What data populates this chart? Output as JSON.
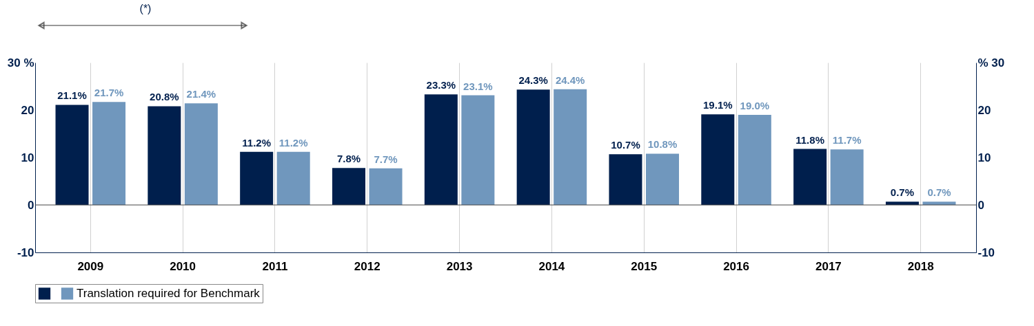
{
  "chart_data": {
    "type": "bar",
    "categories": [
      "2009",
      "2010",
      "2011",
      "2012",
      "2013",
      "2014",
      "2015",
      "2016",
      "2017",
      "2018"
    ],
    "series": [
      {
        "color": "#001f4d",
        "values": [
          21.1,
          20.8,
          11.2,
          7.8,
          23.3,
          24.3,
          10.7,
          19.1,
          11.8,
          0.7
        ],
        "value_labels": [
          "21.1%",
          "20.8%",
          "11.2%",
          "7.8%",
          "23.3%",
          "24.3%",
          "10.7%",
          "19.1%",
          "11.8%",
          "0.7%"
        ]
      },
      {
        "name": "Translation required for Benchmark",
        "color": "#7097bd",
        "values": [
          21.7,
          21.4,
          11.2,
          7.7,
          23.1,
          24.4,
          10.8,
          19.0,
          11.7,
          0.7
        ],
        "value_labels": [
          "21.7%",
          "21.4%",
          "11.2%",
          "7.7%",
          "23.1%",
          "24.4%",
          "10.8%",
          "19.0%",
          "11.7%",
          "0.7%"
        ]
      }
    ],
    "ylim": [
      -10,
      30
    ],
    "yticks": [
      -10,
      0,
      10,
      20,
      {
        "value": 30,
        "label": "30 %"
      }
    ],
    "y2lim": [
      -10,
      30
    ],
    "y2ticks": [
      -10,
      0,
      10,
      20,
      {
        "value": 30,
        "label": "% 30"
      }
    ],
    "grid": "x",
    "ref_lines": [
      {
        "axis": "y",
        "value": 0
      }
    ],
    "legend": "bottom",
    "annotations": [
      "(*)"
    ]
  }
}
